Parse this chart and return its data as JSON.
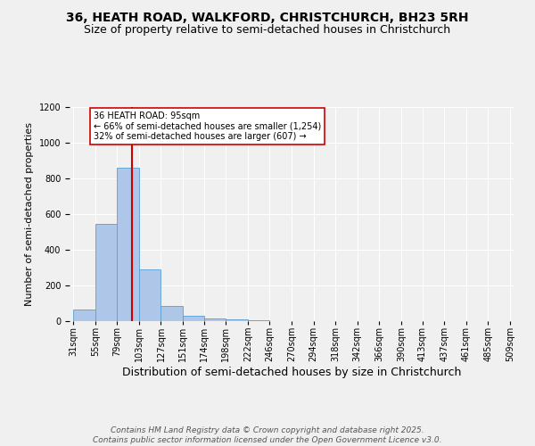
{
  "title1": "36, HEATH ROAD, WALKFORD, CHRISTCHURCH, BH23 5RH",
  "title2": "Size of property relative to semi-detached houses in Christchurch",
  "xlabel": "Distribution of semi-detached houses by size in Christchurch",
  "ylabel": "Number of semi-detached properties",
  "bin_edges": [
    31,
    55,
    79,
    103,
    127,
    151,
    174,
    198,
    222,
    246,
    270,
    294,
    318,
    342,
    366,
    390,
    413,
    437,
    461,
    485,
    509
  ],
  "bar_heights": [
    65,
    545,
    860,
    290,
    85,
    30,
    15,
    10,
    5,
    0,
    0,
    0,
    0,
    0,
    0,
    0,
    0,
    0,
    0,
    0
  ],
  "bar_color": "#aec6e8",
  "bar_edge_color": "#5a9fd4",
  "property_size": 95,
  "red_line_color": "#cc0000",
  "annotation_text": "36 HEATH ROAD: 95sqm\n← 66% of semi-detached houses are smaller (1,254)\n32% of semi-detached houses are larger (607) →",
  "annotation_box_color": "#ffffff",
  "annotation_box_edge": "#cc0000",
  "ylim": [
    0,
    1200
  ],
  "yticks": [
    0,
    200,
    400,
    600,
    800,
    1000,
    1200
  ],
  "background_color": "#f0f0f0",
  "footer_text": "Contains HM Land Registry data © Crown copyright and database right 2025.\nContains public sector information licensed under the Open Government Licence v3.0.",
  "title1_fontsize": 10,
  "title2_fontsize": 9,
  "xlabel_fontsize": 9,
  "ylabel_fontsize": 8,
  "tick_fontsize": 7,
  "annotation_fontsize": 7,
  "footer_fontsize": 6.5
}
